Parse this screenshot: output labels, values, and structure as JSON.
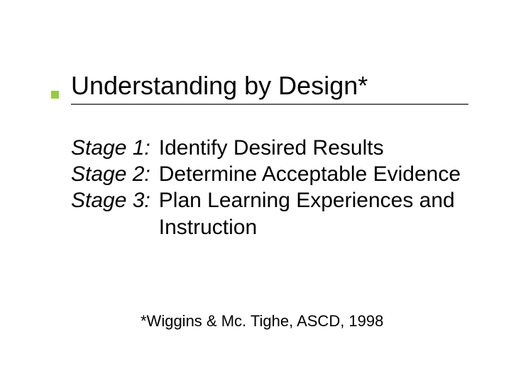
{
  "colors": {
    "bullet": "#99cc33",
    "underline": "#666666",
    "text": "#000000",
    "background": "#ffffff"
  },
  "typography": {
    "title_fontsize": 36,
    "body_fontsize": 30,
    "footnote_fontsize": 22,
    "font_family": "Verdana"
  },
  "title": "Understanding by Design*",
  "stages": [
    {
      "label": "Stage 1:",
      "text": " Identify Desired Results"
    },
    {
      "label": "Stage 2:",
      "text": " Determine Acceptable Evidence"
    },
    {
      "label": "Stage 3:",
      "text": " Plan Learning Experiences and Instruction"
    }
  ],
  "footnote": "*Wiggins & Mc. Tighe, ASCD, 1998"
}
